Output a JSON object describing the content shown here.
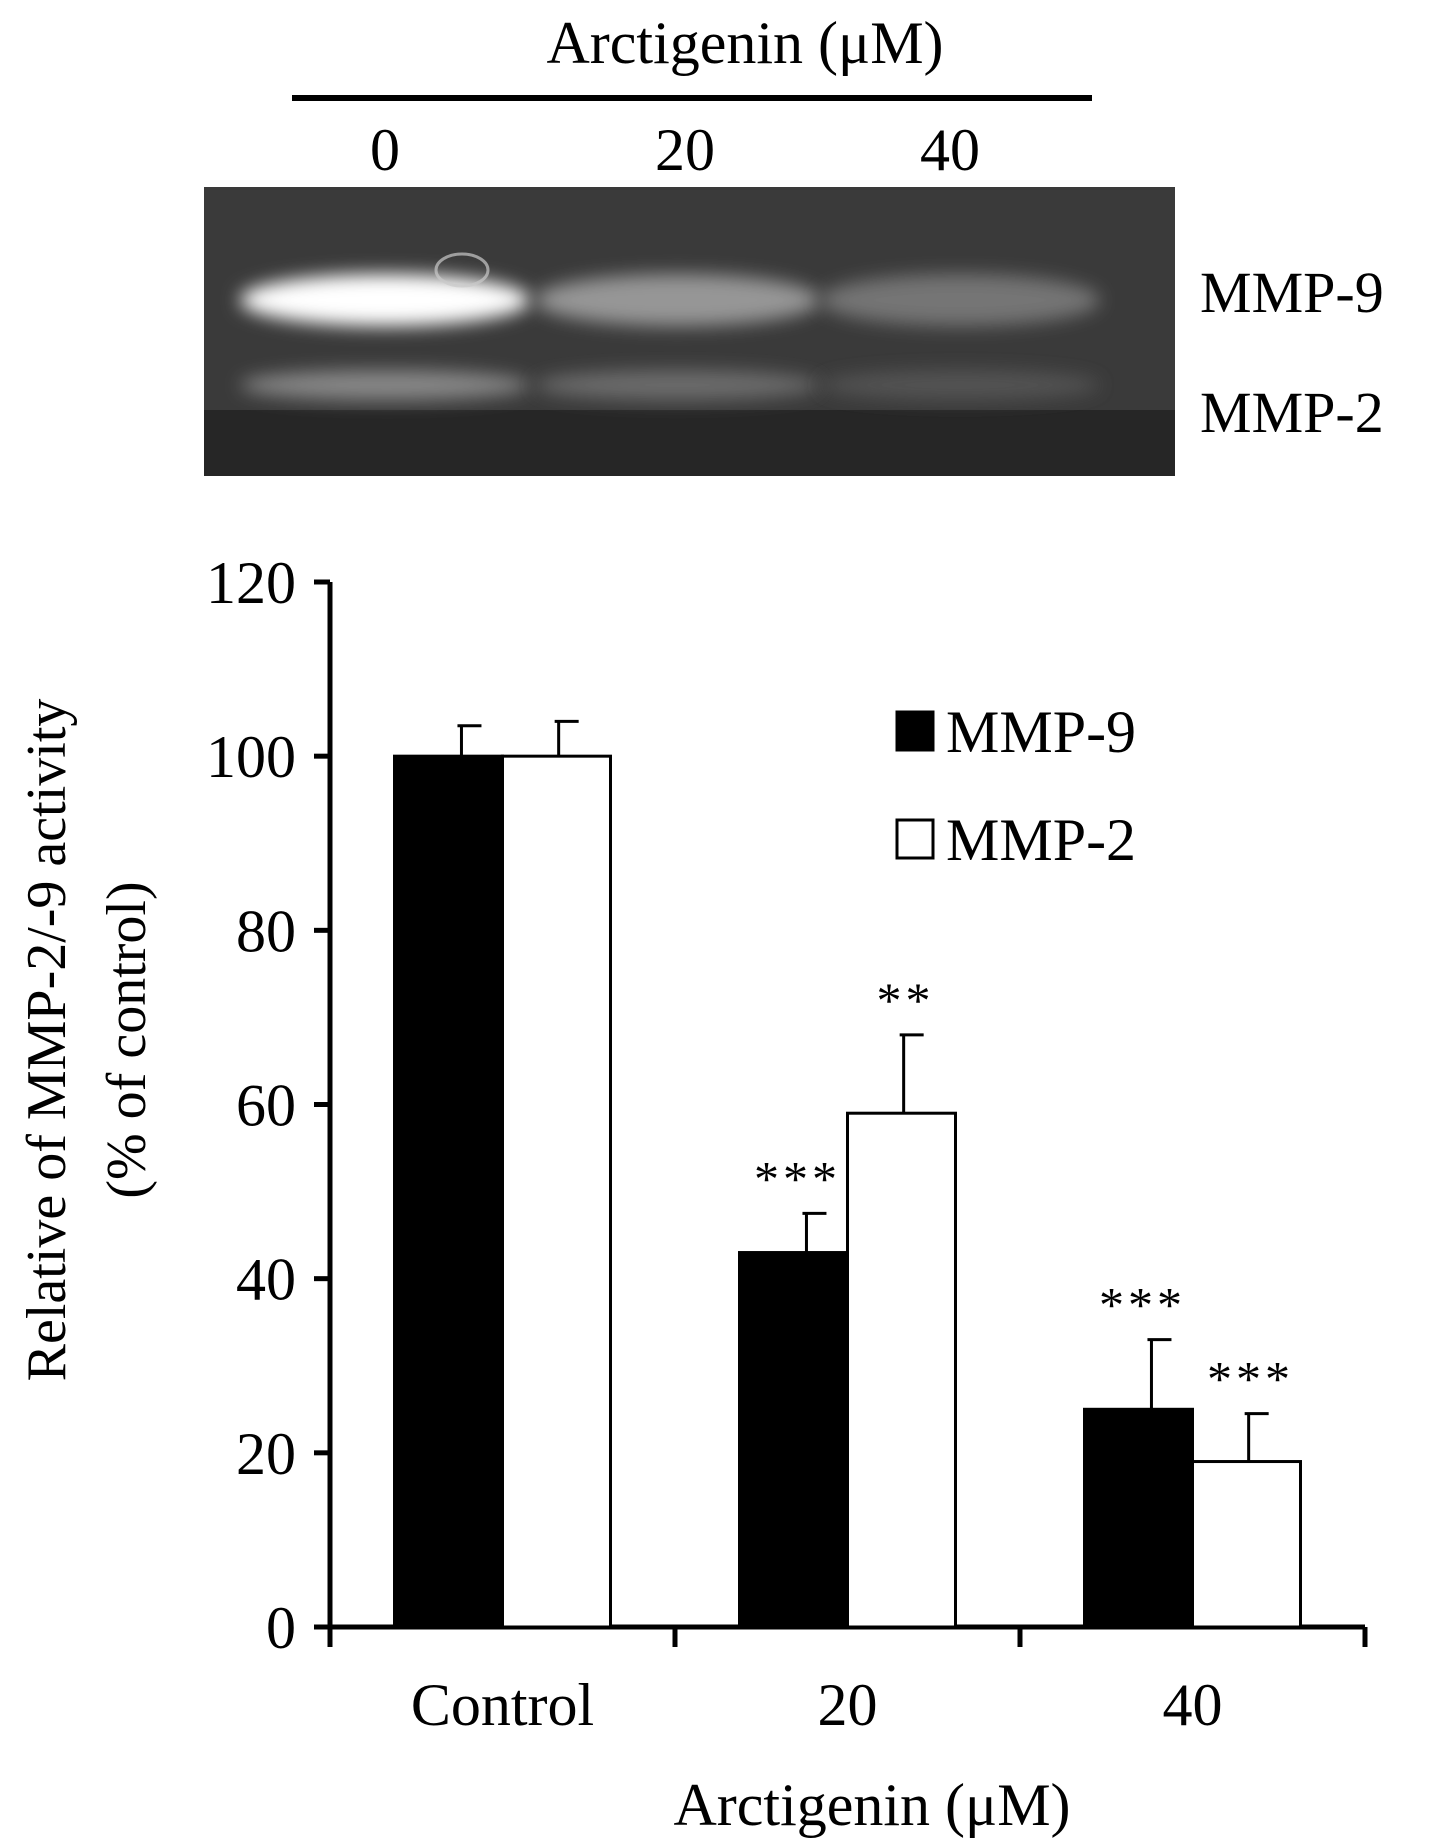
{
  "gel": {
    "title": "Arctigenin (μM)",
    "lanes": [
      "0",
      "20",
      "40"
    ],
    "bands": [
      "MMP-9",
      "MMP-2"
    ],
    "band_intensity": {
      "MMP-9": [
        1.0,
        0.43,
        0.25
      ],
      "MMP-2": [
        1.0,
        0.59,
        0.19
      ]
    }
  },
  "chart_data": {
    "type": "bar",
    "categories": [
      "Control",
      "20",
      "40"
    ],
    "series": [
      {
        "name": "MMP-9",
        "values": [
          100,
          43,
          25
        ],
        "errors": [
          3.5,
          4.5,
          8
        ],
        "significance": [
          "",
          "***",
          "***"
        ],
        "color": "#000000"
      },
      {
        "name": "MMP-2",
        "values": [
          100,
          59,
          19
        ],
        "errors": [
          4,
          9,
          5.5
        ],
        "significance": [
          "",
          "**",
          "***"
        ],
        "color": "#ffffff"
      }
    ],
    "xlabel": "Arctigenin (μM)",
    "ylabel_line1": "Relative of MMP-2/-9 activity",
    "ylabel_line2": "(% of control)",
    "ylim": [
      0,
      120
    ],
    "yticks": [
      "0",
      "20",
      "40",
      "60",
      "80",
      "100",
      "120"
    ],
    "grid": false,
    "legend": "top-right"
  }
}
